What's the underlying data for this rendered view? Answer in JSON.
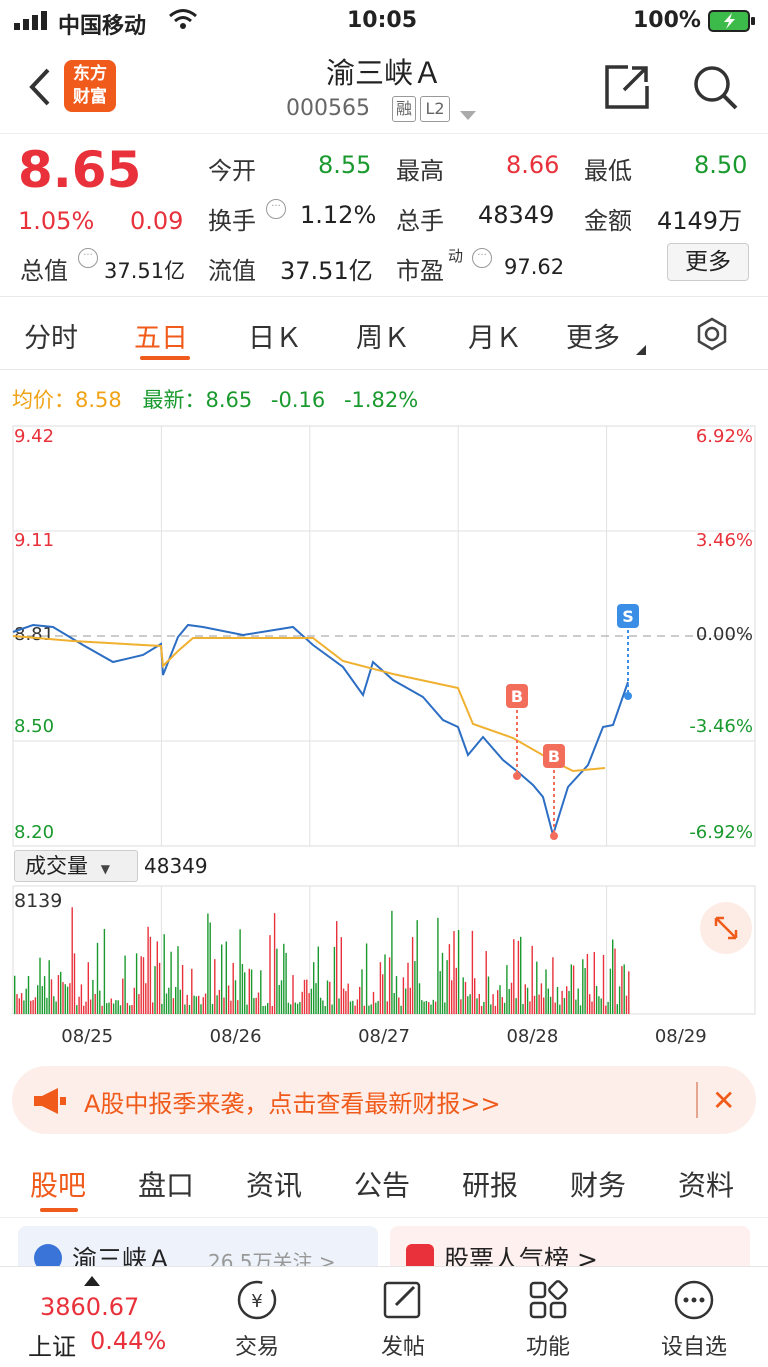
{
  "status": {
    "carrier": "中国移动",
    "time": "10:05",
    "battery": "100%"
  },
  "nav": {
    "logo_line1": "东方",
    "logo_line2": "财富",
    "title": "渝三峡Ａ",
    "code": "000565",
    "tag1": "融",
    "tag2": "L2"
  },
  "quote": {
    "price": "8.65",
    "pct": "1.05%",
    "change": "0.09",
    "open_label": "今开",
    "open": "8.55",
    "high_label": "最高",
    "high": "8.66",
    "low_label": "最低",
    "low": "8.50",
    "turnover_label": "换手",
    "turnover": "1.12%",
    "vol_label": "总手",
    "vol": "48349",
    "amount_label": "金额",
    "amount": "4149万",
    "mktcap_label": "总值",
    "mktcap": "37.51亿",
    "float_label": "流值",
    "float": "37.51亿",
    "pe_label": "市盈",
    "pe_sup": "动",
    "pe": "97.62",
    "more": "更多"
  },
  "tabs": [
    "分时",
    "五日",
    "日Ｋ",
    "周Ｋ",
    "月Ｋ",
    "更多"
  ],
  "chart_header": {
    "avg_label": "均价：",
    "avg": "8.58",
    "last_label": "最新：",
    "last": "8.65",
    "chg": "-0.16",
    "chg_pct": "-1.82%"
  },
  "chart_data": {
    "type": "line",
    "y_left_ticks": [
      "9.42",
      "9.11",
      "8.81",
      "8.50",
      "8.20"
    ],
    "y_right_ticks": [
      "6.92%",
      "3.46%",
      "0.00%",
      "-3.46%",
      "-6.92%"
    ],
    "x_ticks": [
      "08/25",
      "08/26",
      "08/27",
      "08/28",
      "08/29"
    ],
    "ylim": [
      8.2,
      9.42
    ],
    "markers": [
      "B",
      "B",
      "S"
    ],
    "volume_label": "成交量",
    "volume_total": "48349",
    "volume_max": "8139"
  },
  "banner": {
    "text": "A股中报季来袭，点击查看最新财报>>"
  },
  "section_tabs": [
    "股吧",
    "盘口",
    "资讯",
    "公告",
    "研报",
    "财务",
    "资料"
  ],
  "cards": {
    "left_title": "渝三峡Ａ",
    "left_sub": "26.5万关注 >",
    "right_title": "股票人气榜 >"
  },
  "bottom": {
    "index_value": "3860.67",
    "index_name": "上证",
    "index_pct": "0.44%",
    "items": [
      "交易",
      "发帖",
      "功能",
      "设自选"
    ]
  },
  "colors": {
    "up": "#e8313a",
    "down": "#1a9a2e",
    "accent": "#f05a1a",
    "line": "#2c6ec4",
    "avg": "#f0b030"
  }
}
